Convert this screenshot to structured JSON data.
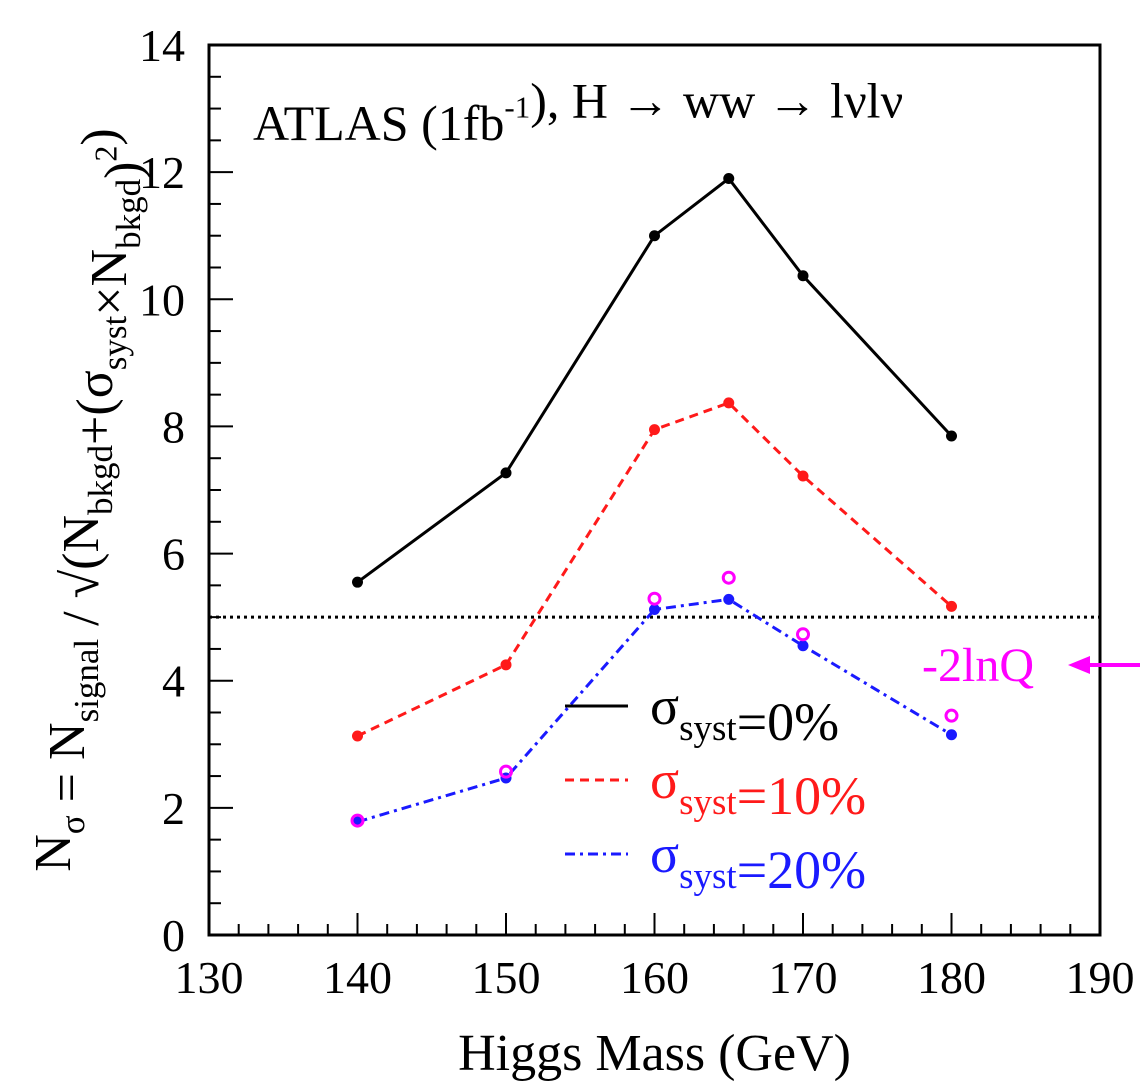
{
  "chart_data": {
    "type": "line",
    "title_parts": [
      "ATLAS (1fb",
      "-1",
      "), H → ww → lνlν"
    ],
    "xlabel": "Higgs Mass (GeV)",
    "ylabel_parts": [
      "N",
      "σ",
      " = N",
      "signal",
      " / √(N",
      "bkgd",
      "+(σ",
      "syst",
      "×N",
      "bkgd",
      ")",
      "2",
      ")"
    ],
    "xlim": [
      130,
      190
    ],
    "ylim": [
      0,
      14
    ],
    "xticks": [
      "130",
      "140",
      "150",
      "160",
      "170",
      "180",
      "190"
    ],
    "yticks": [
      "0",
      "2",
      "4",
      "6",
      "8",
      "10",
      "12",
      "14"
    ],
    "grid": false,
    "legend_position": "bottom-center",
    "reference_line": {
      "y": 5.0,
      "style": "dotted",
      "color": "#000000"
    },
    "series": [
      {
        "legend_parts": [
          "σ",
          "syst",
          "=0%"
        ],
        "color": "#000000",
        "dash": "solid",
        "x": [
          140,
          150,
          160,
          165,
          170,
          180
        ],
        "y": [
          5.55,
          7.27,
          11.0,
          11.9,
          10.37,
          7.85
        ]
      },
      {
        "legend_parts": [
          "σ",
          "syst",
          "=10%"
        ],
        "color": "#ff1a1a",
        "dash": "dashed",
        "x": [
          140,
          150,
          160,
          165,
          170,
          180
        ],
        "y": [
          3.13,
          4.25,
          7.95,
          8.37,
          7.22,
          5.17
        ]
      },
      {
        "legend_parts": [
          "σ",
          "syst",
          "=20%"
        ],
        "color": "#1a1aff",
        "dash": "dash-dot",
        "x": [
          140,
          150,
          160,
          165,
          170,
          180
        ],
        "y": [
          1.78,
          2.47,
          5.12,
          5.28,
          4.55,
          3.15
        ]
      },
      {
        "marker_only": true,
        "marker": "open-circle",
        "color": "#ff00ff",
        "x": [
          140,
          150,
          160,
          165,
          170,
          180
        ],
        "y": [
          1.8,
          2.57,
          5.29,
          5.62,
          4.73,
          3.45
        ]
      }
    ],
    "annotations": [
      {
        "text": "-2lnQ",
        "color": "#ff00ff",
        "arrow": "left"
      }
    ]
  }
}
